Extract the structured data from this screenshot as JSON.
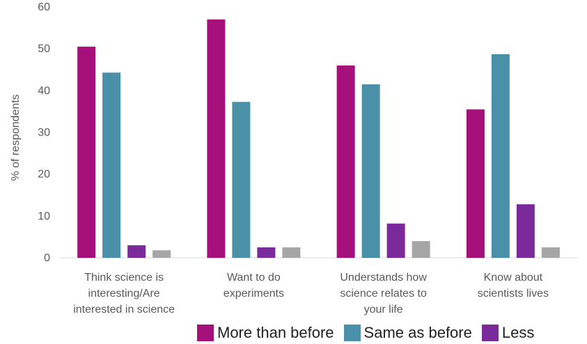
{
  "chart_data": {
    "type": "bar",
    "title": "",
    "xlabel": "",
    "ylabel": "% of respondents",
    "ylim": [
      0,
      60
    ],
    "yticks": [
      "0",
      "10",
      "20",
      "30",
      "40",
      "50",
      "60"
    ],
    "grid": false,
    "legend_position": "bottom",
    "categories": [
      [
        "Think science is",
        "interesting/Are",
        "interested in science"
      ],
      [
        "Want to do",
        "experiments"
      ],
      [
        "Understands how",
        "science relates to",
        "your life"
      ],
      [
        "Know about",
        "scientists lives"
      ]
    ],
    "series": [
      {
        "name": "More than before",
        "color": "#A5107A",
        "values": [
          50.5,
          57,
          46,
          35.5
        ]
      },
      {
        "name": "Same as before",
        "color": "#4A90A8",
        "values": [
          44.3,
          37.3,
          41.5,
          48.7
        ]
      },
      {
        "name": "Less",
        "color": "#7B2A9C",
        "values": [
          3,
          2.5,
          8.2,
          12.8
        ]
      },
      {
        "name": "",
        "color": "#A6A6A6",
        "values": [
          1.8,
          2.5,
          4,
          2.5
        ]
      }
    ]
  }
}
